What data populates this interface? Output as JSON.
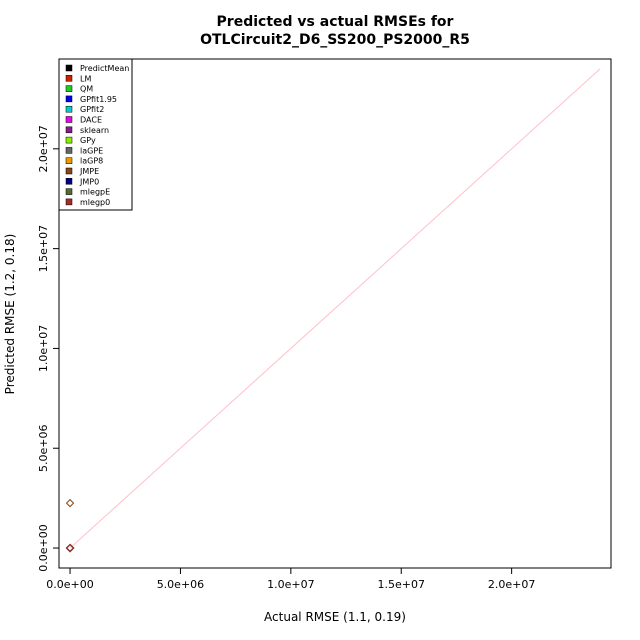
{
  "chart_data": {
    "type": "scatter",
    "title_line1": "Predicted vs actual RMSEs for",
    "title_line2": "OTLCircuit2_D6_SS200_PS2000_R5",
    "xlabel": "Actual RMSE (1.1, 0.19)",
    "ylabel": "Predicted RMSE (1.2, 0.18)",
    "xlim": [
      -500000,
      24500000
    ],
    "ylim": [
      -1000000,
      24500000
    ],
    "x_ticks": [
      0,
      5000000,
      10000000,
      15000000,
      20000000
    ],
    "x_tick_labels": [
      "0.0e+00",
      "5.0e+06",
      "1.0e+07",
      "1.5e+07",
      "2.0e+07"
    ],
    "y_ticks": [
      0,
      5000000,
      10000000,
      15000000,
      20000000
    ],
    "y_tick_labels": [
      "0.0e+00",
      "5.0e+06",
      "1.0e+07",
      "1.5e+07",
      "2.0e+07"
    ],
    "reference_line": {
      "from": [
        0,
        0
      ],
      "to": [
        24000000,
        24000000
      ],
      "color": "#ffc0cb"
    },
    "legend_position": "top-left",
    "grid": false,
    "series": [
      {
        "name": "PredictMean",
        "color": "#000000",
        "points": [
          [
            1.1,
            1.2
          ]
        ]
      },
      {
        "name": "LM",
        "color": "#cc2200",
        "points": [
          [
            1.1,
            1.2
          ]
        ]
      },
      {
        "name": "QM",
        "color": "#22cc22",
        "points": [
          [
            1.1,
            1.2
          ]
        ]
      },
      {
        "name": "GPfit1.95",
        "color": "#0000ee",
        "points": [
          [
            1.1,
            1.2
          ]
        ]
      },
      {
        "name": "GPfit2",
        "color": "#00cccc",
        "points": [
          [
            1.1,
            1.2
          ]
        ]
      },
      {
        "name": "DACE",
        "color": "#ee00ee",
        "points": [
          [
            1.1,
            1.2
          ]
        ]
      },
      {
        "name": "sklearn",
        "color": "#8b1a8b",
        "points": [
          [
            1.1,
            1.2
          ]
        ]
      },
      {
        "name": "GPy",
        "color": "#88ee00",
        "points": [
          [
            1.1,
            1.2
          ]
        ]
      },
      {
        "name": "laGPE",
        "color": "#666666",
        "points": [
          [
            1.1,
            1.2
          ]
        ]
      },
      {
        "name": "laGP8",
        "color": "#ee9900",
        "points": [
          [
            1.1,
            1.2
          ]
        ]
      },
      {
        "name": "JMPE",
        "color": "#8b4513",
        "points": [
          [
            1.1,
            1.2
          ],
          [
            1.1,
            2250000
          ]
        ]
      },
      {
        "name": "JMP0",
        "color": "#00008b",
        "points": [
          [
            1.1,
            1.2
          ]
        ]
      },
      {
        "name": "mlegpE",
        "color": "#556b2f",
        "points": [
          [
            1.1,
            1.2
          ]
        ]
      },
      {
        "name": "mlegp0",
        "color": "#a52a2a",
        "points": [
          [
            1.1,
            1.2
          ]
        ]
      }
    ]
  }
}
